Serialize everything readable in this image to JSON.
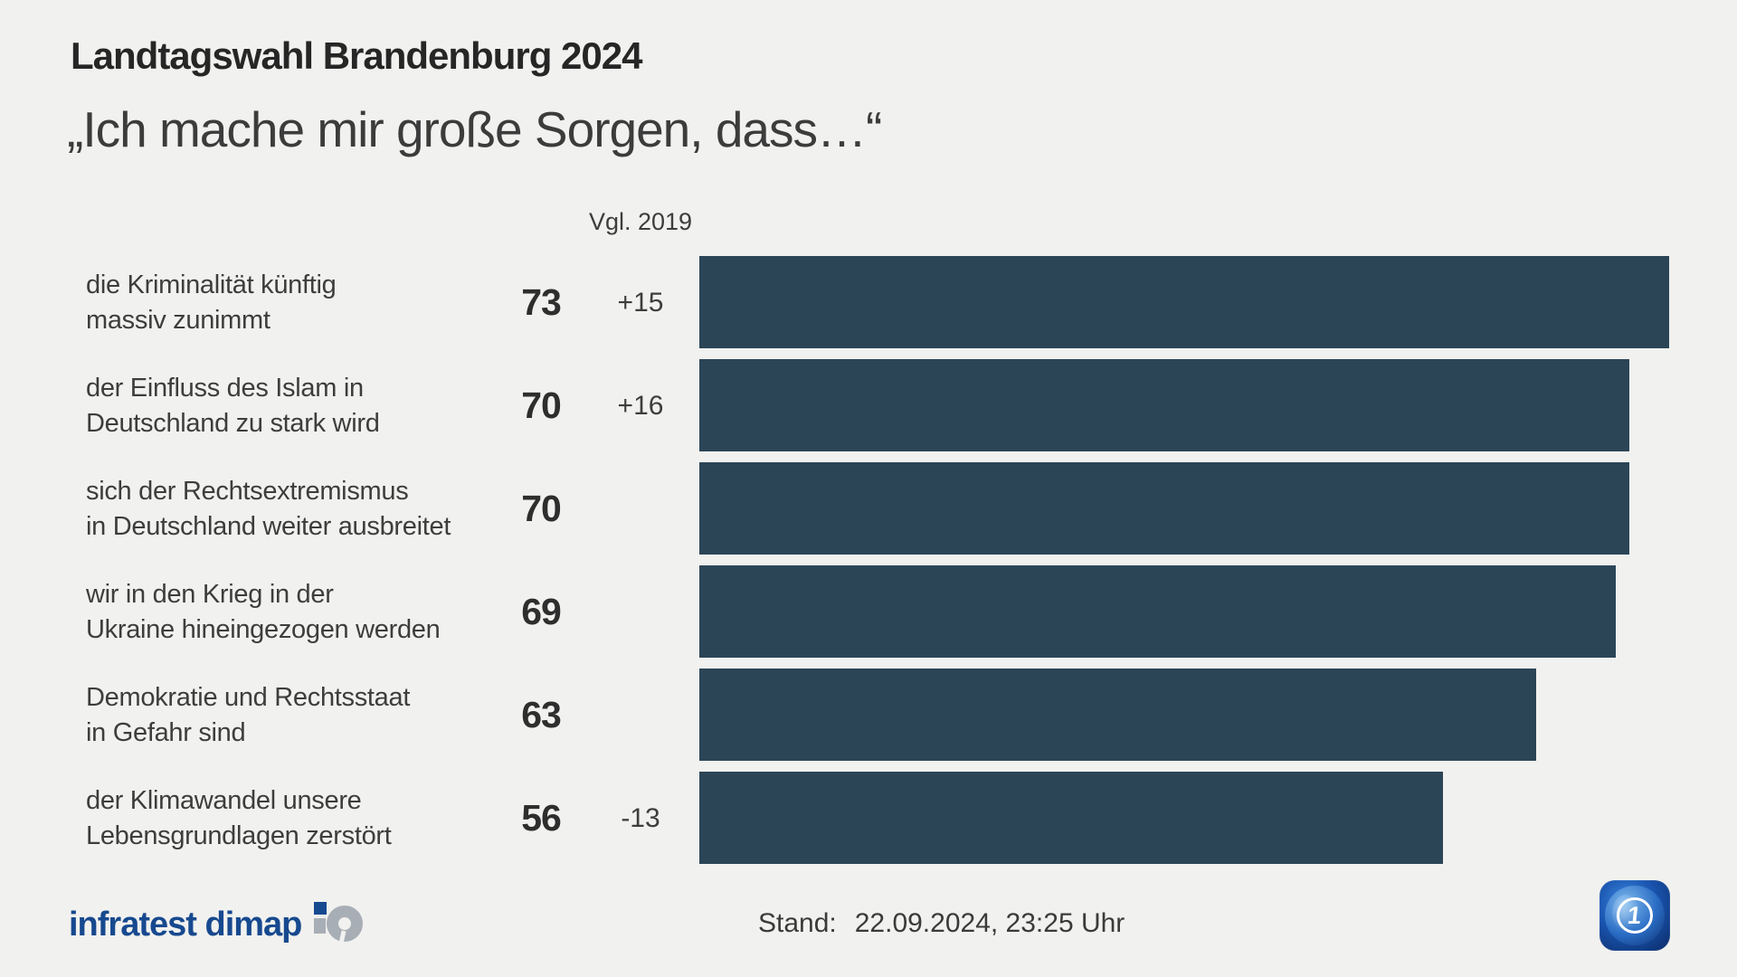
{
  "header": {
    "kicker": "Landtagswahl Brandenburg 2024",
    "title": "„Ich mache mir große Sorgen, dass…“"
  },
  "chart_data": {
    "type": "bar",
    "orientation": "horizontal",
    "title": "„Ich mache mir große Sorgen, dass…“",
    "comparison_header": "Vgl. 2019",
    "categories": [
      "die Kriminalität künftig massiv zunimmt",
      "der Einfluss des Islam in Deutschland zu stark wird",
      "sich der Rechtsextremismus in Deutschland weiter ausbreitet",
      "wir in den Krieg in der Ukraine hineingezogen werden",
      "Demokratie und Rechtsstaat in Gefahr sind",
      "der Klimawandel unsere Lebensgrundlagen zerstört"
    ],
    "values": [
      73,
      70,
      70,
      69,
      63,
      56
    ],
    "changes_vs_2019": [
      "+15",
      "+16",
      "",
      "",
      "",
      "-13"
    ],
    "rows": [
      {
        "label_line1": "die Kriminalität künftig",
        "label_line2": "massiv zunimmt",
        "value": 73,
        "change": "+15"
      },
      {
        "label_line1": "der Einfluss des Islam in",
        "label_line2": "Deutschland zu stark wird",
        "value": 70,
        "change": "+16"
      },
      {
        "label_line1": "sich der Rechtsextremismus",
        "label_line2": "in Deutschland weiter ausbreitet",
        "value": 70,
        "change": ""
      },
      {
        "label_line1": "wir in den Krieg in der",
        "label_line2": "Ukraine hineingezogen werden",
        "value": 69,
        "change": ""
      },
      {
        "label_line1": "Demokratie und Rechtsstaat",
        "label_line2": "in Gefahr sind",
        "value": 63,
        "change": ""
      },
      {
        "label_line1": "der Klimawandel unsere",
        "label_line2": "Lebensgrundlagen zerstört",
        "value": 56,
        "change": "-13"
      }
    ],
    "value_axis_max": 73,
    "unit": "percent",
    "grid": false,
    "legend": false,
    "bar_color": "#2b4557"
  },
  "footer": {
    "source": "infratest dimap",
    "stand_label": "Stand:",
    "stand_value": "22.09.2024, 23:25 Uhr",
    "ard_glyph": "1"
  },
  "colors": {
    "background": "#f1f1ef",
    "bar": "#2b4557",
    "brand_blue": "#17498f",
    "logo_gray": "#a8aeb5",
    "text_dark": "#262626",
    "text_gray": "#3d3d3d"
  }
}
